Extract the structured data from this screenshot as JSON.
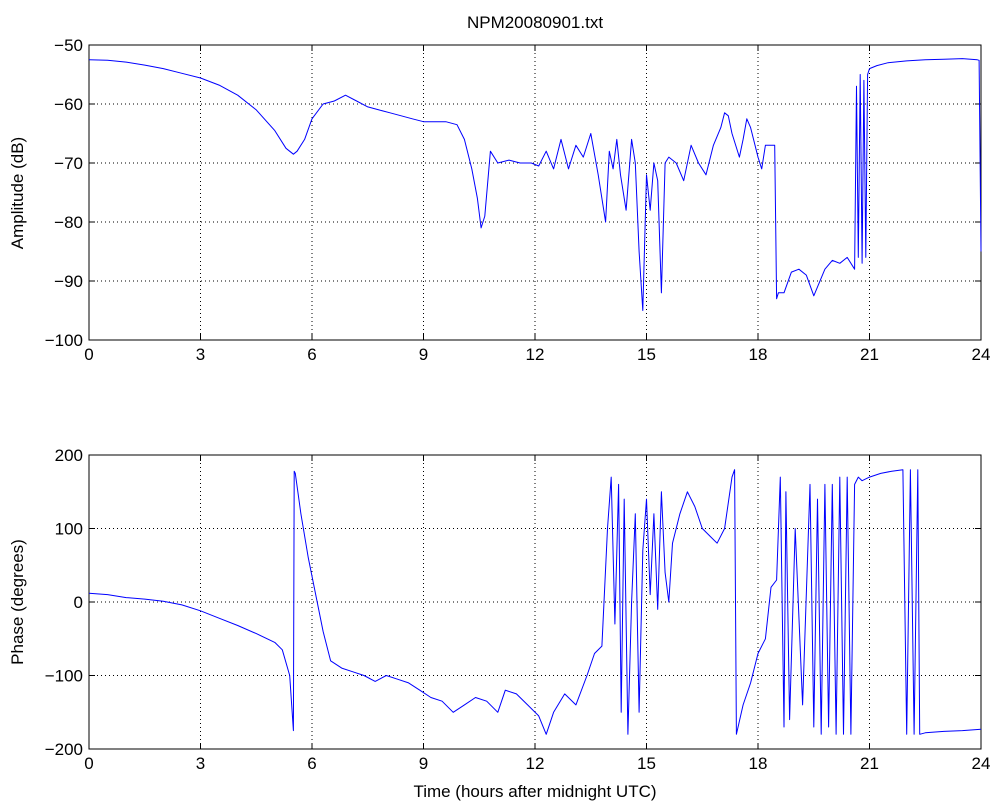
{
  "chart_data": [
    {
      "type": "line",
      "title": "NPM20080901.txt",
      "xlabel": "",
      "ylabel": "Amplitude (dB)",
      "xlim": [
        0,
        24
      ],
      "ylim": [
        -100,
        -50
      ],
      "xticks": [
        0,
        3,
        6,
        9,
        12,
        15,
        18,
        21,
        24
      ],
      "yticks": [
        -50,
        -60,
        -70,
        -80,
        -90,
        -100
      ],
      "grid": true,
      "line_color": "#0000ff",
      "series": [
        {
          "x": [
            0,
            0.5,
            1,
            1.5,
            2,
            2.5,
            3,
            3.5,
            4,
            4.5,
            5,
            5.3,
            5.5,
            5.6,
            5.8,
            6,
            6.3,
            6.6,
            6.9,
            7.2,
            7.5,
            7.8,
            8.1,
            8.4,
            8.7,
            9,
            9.3,
            9.6,
            9.9,
            10.1,
            10.3,
            10.45,
            10.55,
            10.65,
            10.8,
            11.0,
            11.3,
            11.6,
            11.9,
            12.1,
            12.3,
            12.5,
            12.7,
            12.9,
            13.1,
            13.3,
            13.5,
            13.7,
            13.9,
            14.0,
            14.1,
            14.2,
            14.3,
            14.45,
            14.6,
            14.7,
            14.8,
            14.9,
            15.0,
            15.1,
            15.2,
            15.3,
            15.4,
            15.5,
            15.6,
            15.8,
            16.0,
            16.2,
            16.4,
            16.6,
            16.8,
            17.0,
            17.1,
            17.2,
            17.3,
            17.5,
            17.6,
            17.7,
            17.8,
            18.0,
            18.1,
            18.2,
            18.3,
            18.45,
            18.5,
            18.55,
            18.7,
            18.9,
            19.1,
            19.3,
            19.5,
            19.6,
            19.8,
            20.0,
            20.2,
            20.4,
            20.6,
            20.65,
            20.7,
            20.75,
            20.8,
            20.85,
            20.9,
            20.95,
            21.0,
            21.2,
            21.5,
            22,
            22.5,
            23,
            23.5,
            23.9,
            23.95,
            24
          ],
          "y": [
            -52.5,
            -52.6,
            -52.9,
            -53.4,
            -54,
            -54.8,
            -55.6,
            -56.8,
            -58.5,
            -61,
            -64.5,
            -67.5,
            -68.5,
            -68,
            -66,
            -62.5,
            -60,
            -59.5,
            -58.5,
            -59.5,
            -60.5,
            -61,
            -61.5,
            -62,
            -62.5,
            -63,
            -63,
            -63,
            -63.5,
            -66,
            -71,
            -76,
            -81,
            -79,
            -68,
            -70,
            -69.5,
            -70,
            -70,
            -70.5,
            -68,
            -71,
            -66,
            -71,
            -67,
            -69,
            -65,
            -72,
            -80,
            -68,
            -71,
            -66,
            -72,
            -78,
            -66,
            -70,
            -85,
            -95,
            -72,
            -78,
            -70,
            -73,
            -92,
            -70,
            -69,
            -70,
            -73,
            -67,
            -70,
            -72,
            -67,
            -64,
            -61.5,
            -62,
            -65,
            -69,
            -66,
            -62.5,
            -64,
            -69,
            -71,
            -67,
            -67,
            -67,
            -93,
            -92,
            -92,
            -88.5,
            -88,
            -89,
            -92.5,
            -91,
            -88,
            -86.5,
            -87,
            -86,
            -88,
            -57,
            -86,
            -55,
            -87,
            -56,
            -86,
            -55,
            -54,
            -53.5,
            -53,
            -52.7,
            -52.5,
            -52.4,
            -52.3,
            -52.5,
            -52.6,
            -85
          ]
        }
      ]
    },
    {
      "type": "line",
      "title": "",
      "xlabel": "Time (hours after midnight UTC)",
      "ylabel": "Phase (degrees)",
      "xlim": [
        0,
        24
      ],
      "ylim": [
        -200,
        200
      ],
      "xticks": [
        0,
        3,
        6,
        9,
        12,
        15,
        18,
        21,
        24
      ],
      "yticks": [
        200,
        100,
        0,
        -100,
        -200
      ],
      "grid": true,
      "line_color": "#0000ff",
      "series": [
        {
          "x": [
            0,
            0.5,
            1,
            1.5,
            2,
            2.5,
            3,
            3.5,
            4,
            4.5,
            5,
            5.2,
            5.4,
            5.5,
            5.52,
            5.55,
            5.7,
            5.9,
            6.1,
            6.3,
            6.5,
            6.8,
            7.1,
            7.4,
            7.7,
            8.0,
            8.3,
            8.6,
            8.9,
            9.2,
            9.5,
            9.8,
            10.1,
            10.4,
            10.7,
            11.0,
            11.2,
            11.5,
            11.8,
            12.1,
            12.3,
            12.5,
            12.8,
            13.1,
            13.4,
            13.6,
            13.8,
            13.95,
            14.05,
            14.15,
            14.25,
            14.32,
            14.4,
            14.5,
            14.6,
            14.7,
            14.8,
            14.9,
            15.0,
            15.1,
            15.2,
            15.3,
            15.4,
            15.5,
            15.6,
            15.7,
            15.9,
            16.1,
            16.3,
            16.5,
            16.7,
            16.9,
            17.1,
            17.3,
            17.37,
            17.42,
            17.6,
            17.8,
            18.0,
            18.2,
            18.35,
            18.5,
            18.6,
            18.7,
            18.75,
            18.85,
            19.0,
            19.2,
            19.4,
            19.5,
            19.6,
            19.7,
            19.8,
            19.9,
            20.0,
            20.1,
            20.2,
            20.3,
            20.4,
            20.5,
            20.6,
            20.7,
            20.8,
            21.0,
            21.3,
            21.6,
            21.9,
            22.0,
            22.1,
            22.2,
            22.3,
            22.35,
            22.5,
            23.0,
            23.5,
            24
          ],
          "y": [
            12,
            10,
            6,
            4,
            1,
            -4,
            -12,
            -22,
            -32,
            -43,
            -55,
            -65,
            -100,
            -175,
            178,
            175,
            120,
            60,
            10,
            -40,
            -80,
            -90,
            -95,
            -100,
            -108,
            -100,
            -105,
            -110,
            -120,
            -130,
            -135,
            -150,
            -140,
            -130,
            -135,
            -150,
            -120,
            -125,
            -140,
            -155,
            -180,
            -150,
            -125,
            -140,
            -100,
            -70,
            -60,
            100,
            170,
            -30,
            160,
            -150,
            140,
            -180,
            0,
            120,
            -150,
            70,
            140,
            10,
            120,
            -10,
            150,
            40,
            0,
            80,
            120,
            150,
            130,
            100,
            90,
            80,
            100,
            170,
            180,
            -180,
            -140,
            -110,
            -70,
            -50,
            20,
            30,
            170,
            -170,
            150,
            -160,
            100,
            -140,
            160,
            -170,
            140,
            -180,
            160,
            -170,
            160,
            -180,
            170,
            -180,
            170,
            -180,
            160,
            170,
            165,
            170,
            175,
            178,
            180,
            -180,
            180,
            -180,
            180,
            -180,
            -178,
            -176,
            -175,
            -173
          ]
        }
      ]
    }
  ]
}
